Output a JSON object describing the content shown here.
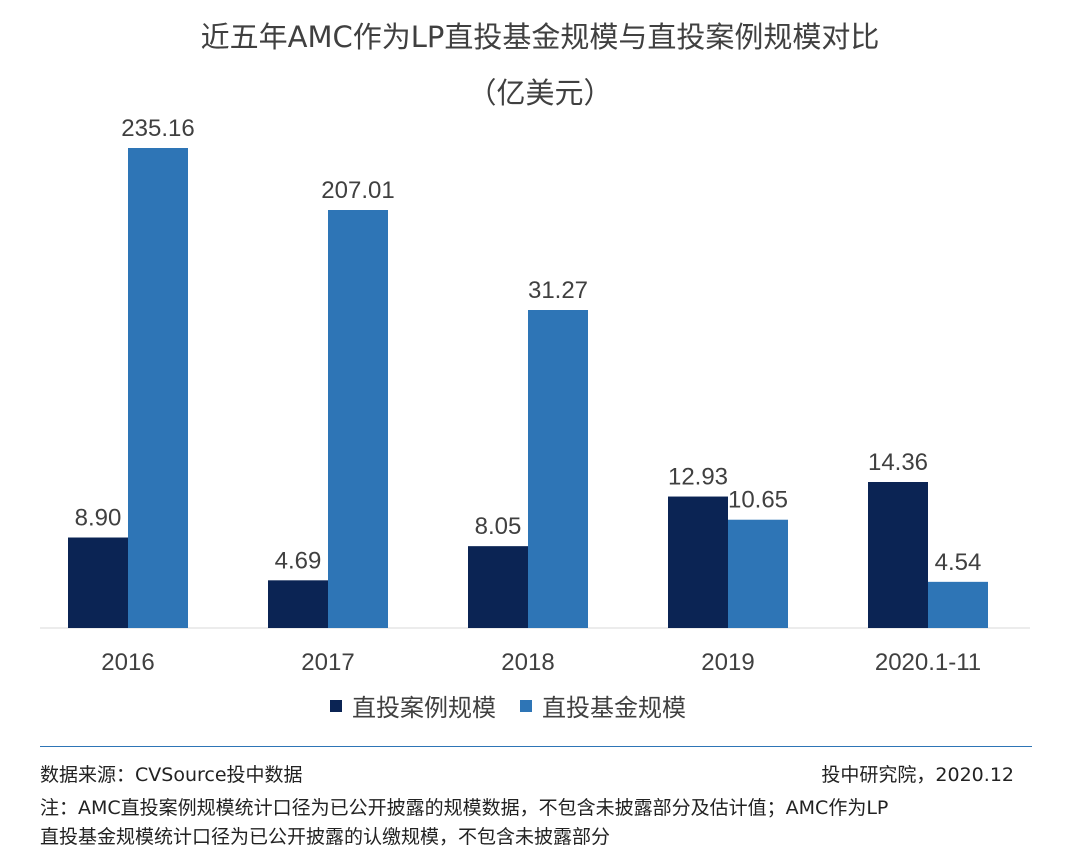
{
  "chart_data": {
    "type": "bar",
    "title": "近五年AMC作为LP直投基金规模与直投案例规模对比",
    "subtitle": "（亿美元）",
    "categories": [
      "2016",
      "2017",
      "2018",
      "2019",
      "2020.1-11"
    ],
    "series": [
      {
        "name": "直投案例规模",
        "color": "#0B2454",
        "values": [
          8.9,
          4.69,
          8.05,
          12.93,
          14.36
        ]
      },
      {
        "name": "直投基金规模",
        "color": "#2E75B6",
        "values": [
          235.16,
          207.01,
          31.27,
          10.65,
          4.54
        ]
      }
    ],
    "grid": false,
    "legend_position": "bottom"
  },
  "footer": {
    "source": "数据来源：CVSource投中数据",
    "publisher": "投中研究院，2020.12",
    "note_line1": "注：AMC直投案例规模统计口径为已公开披露的规模数据，不包含未披露部分及估计值；AMC作为LP",
    "note_line2": "直投基金规模统计口径为已公开披露的认缴规模，不包含未披露部分"
  }
}
